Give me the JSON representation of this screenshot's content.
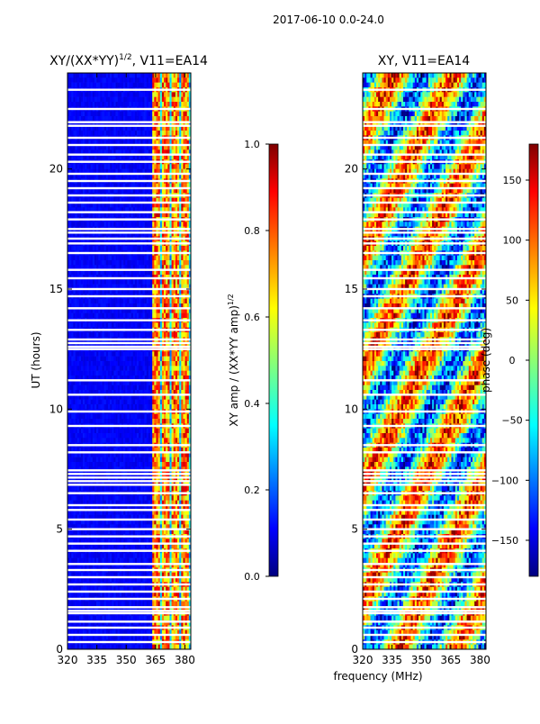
{
  "figure": {
    "suptitle": "2017-06-10 0.0-24.0",
    "shared_xlabel": "frequency (MHz)"
  },
  "colormap": {
    "name": "jet",
    "stops": [
      "#00007f",
      "#0000ff",
      "#00ffff",
      "#ffff00",
      "#ff0000",
      "#7f0000"
    ],
    "band_white": "#ffffff"
  },
  "chart_data": [
    {
      "type": "heatmap",
      "title": "XY/(XX*YY)^1/2, V11=EA14",
      "title_parts": {
        "main": "XY/(XX*YY)",
        "sup": "1/2",
        "tail": ", V11=EA14"
      },
      "xlabel": "",
      "ylabel": "UT (hours)",
      "xlim": [
        320,
        383
      ],
      "ylim": [
        0,
        24
      ],
      "xticks": [
        320,
        335,
        350,
        365,
        380
      ],
      "yticks": [
        0,
        5,
        10,
        15,
        20
      ],
      "active_band_mhz": [
        363,
        382
      ],
      "channel_columns_mhz": [
        364,
        366,
        369,
        371,
        374,
        376,
        379,
        381
      ],
      "colorbar": {
        "label_main": "XY amp / (XX*YY amp)",
        "label_sup": "1/2",
        "range": [
          0.0,
          1.0
        ],
        "ticks": [
          "0.0",
          "0.2",
          "0.4",
          "0.6",
          "0.8",
          "1.0"
        ]
      }
    },
    {
      "type": "heatmap",
      "title": "XY, V11=EA14",
      "xlabel": "frequency (MHz)",
      "ylabel": "",
      "xlim": [
        320,
        383
      ],
      "ylim": [
        0,
        24
      ],
      "xticks": [
        320,
        335,
        350,
        365,
        380
      ],
      "yticks": [
        0,
        5,
        10,
        15,
        20
      ],
      "colorbar": {
        "label_main": "phase (deg)",
        "range": [
          -180,
          180
        ],
        "ticks": [
          "-150",
          "-100",
          "-50",
          "0",
          "50",
          "100",
          "150"
        ]
      }
    }
  ],
  "flagged_hours": [
    0.3,
    0.6,
    0.9,
    1.15,
    1.5,
    1.6,
    1.75,
    2.1,
    2.4,
    2.7,
    3.0,
    3.3,
    3.55,
    4.1,
    4.4,
    4.7,
    5.0,
    5.4,
    5.8,
    6.0,
    6.5,
    6.85,
    7.0,
    7.15,
    7.3,
    7.45,
    8.2,
    8.5,
    9.3,
    9.9,
    10.6,
    11.2,
    12.5,
    12.6,
    12.75,
    12.9,
    13.3,
    13.7,
    14.2,
    14.7,
    15.0,
    15.45,
    15.8,
    16.5,
    16.9,
    17.1,
    17.35,
    17.5,
    17.9,
    18.2,
    18.6,
    18.9,
    19.2,
    19.5,
    19.8,
    20.3,
    20.6,
    21.0,
    21.3,
    21.8,
    21.95,
    22.5,
    23.3
  ]
}
